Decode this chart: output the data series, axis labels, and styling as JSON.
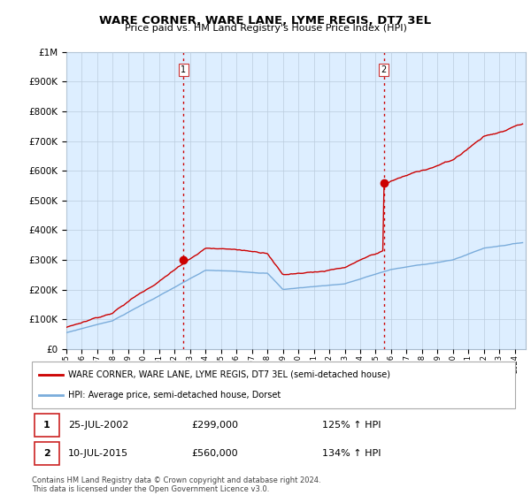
{
  "title": "WARE CORNER, WARE LANE, LYME REGIS, DT7 3EL",
  "subtitle": "Price paid vs. HM Land Registry's House Price Index (HPI)",
  "sale1_date": "25-JUL-2002",
  "sale1_price": 299000,
  "sale1_year": 2002.56,
  "sale2_date": "10-JUL-2015",
  "sale2_price": 560000,
  "sale2_year": 2015.53,
  "sale1_hpi_pct": "125% ↑ HPI",
  "sale2_hpi_pct": "134% ↑ HPI",
  "legend1": "WARE CORNER, WARE LANE, LYME REGIS, DT7 3EL (semi-detached house)",
  "legend2": "HPI: Average price, semi-detached house, Dorset",
  "footer": "Contains HM Land Registry data © Crown copyright and database right 2024.\nThis data is licensed under the Open Government Licence v3.0.",
  "line_color_red": "#cc0000",
  "line_color_blue": "#7aacdb",
  "bg_color": "#ddeeff",
  "grid_color": "#bbccdd",
  "ylim_max": 1000000,
  "xlim_start": 1995.0,
  "xlim_end": 2024.7
}
